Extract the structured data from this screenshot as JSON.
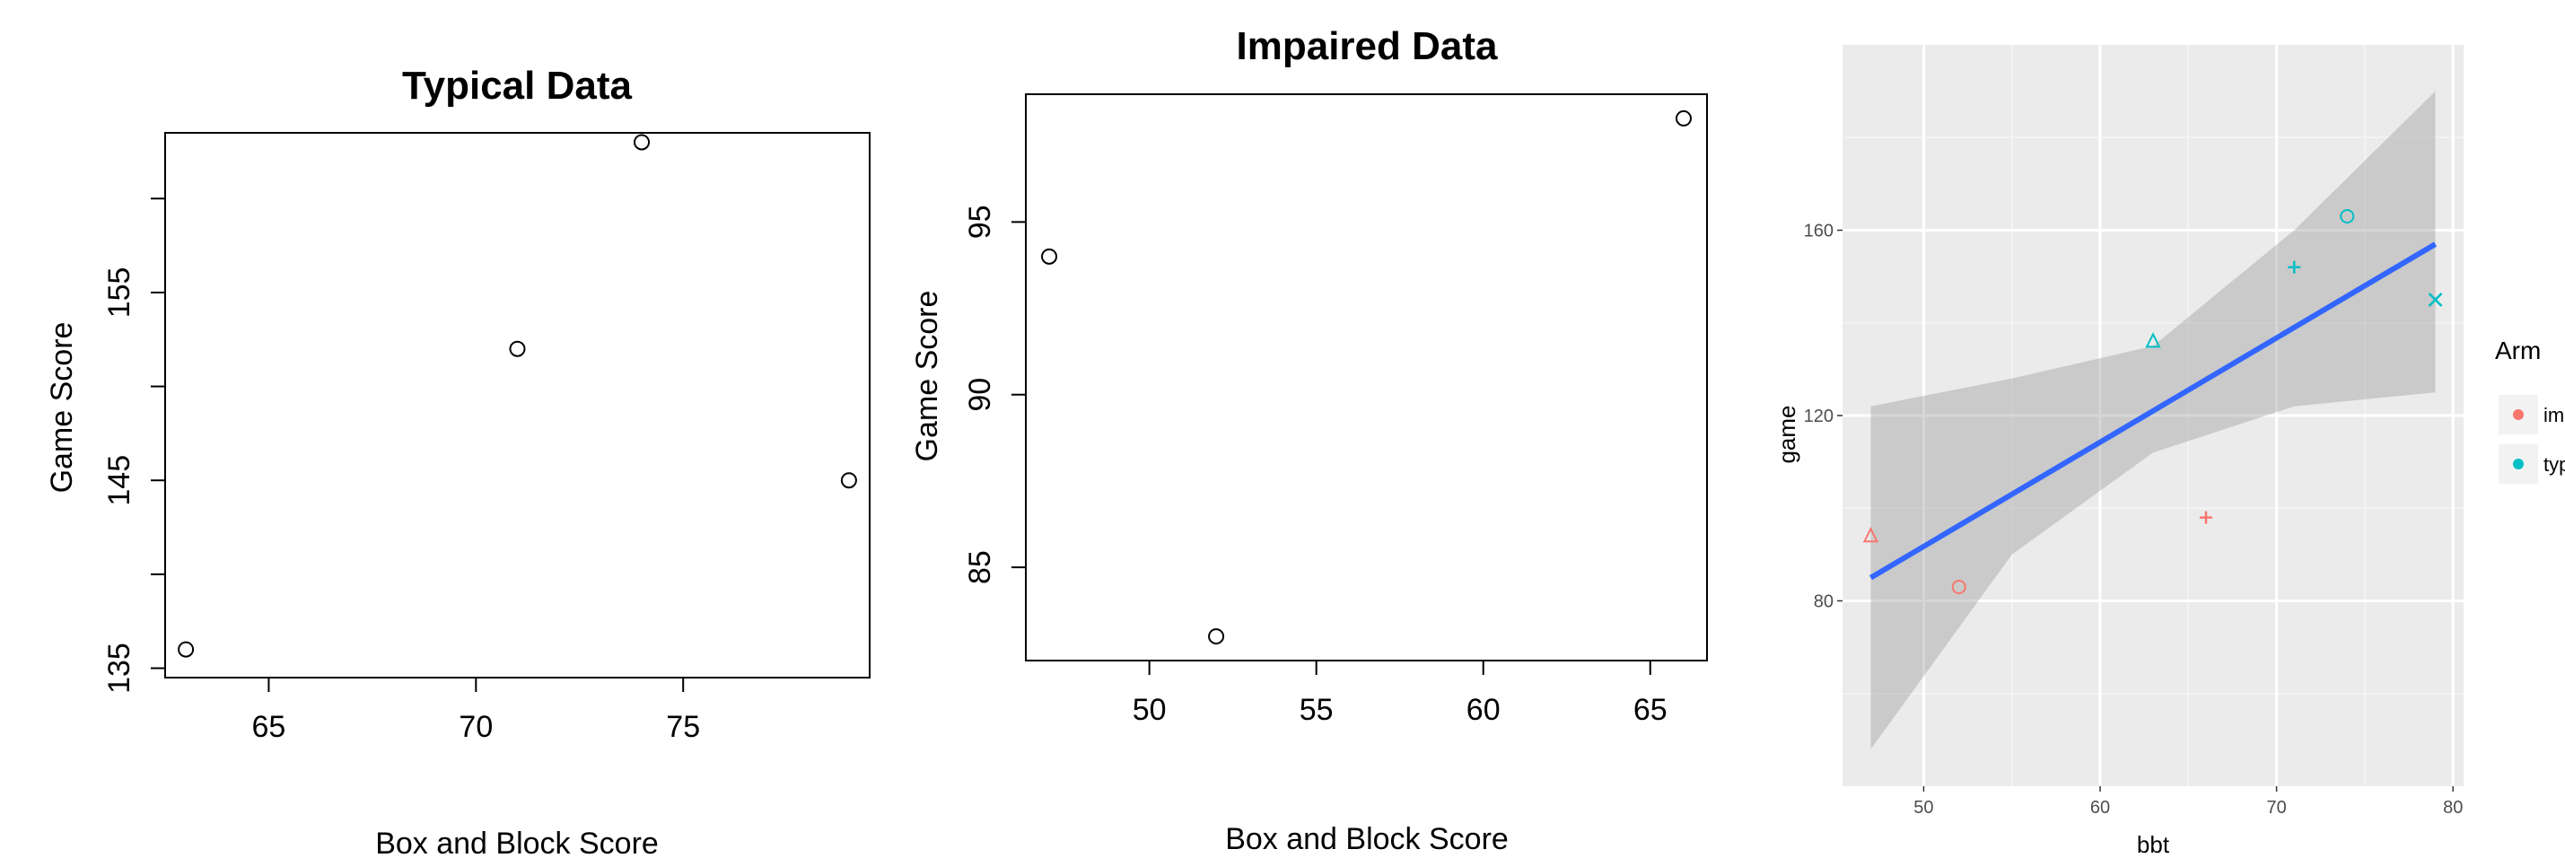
{
  "chart_data": [
    {
      "type": "scatter",
      "title": "Typical Data",
      "xlabel": "Box and Block Score",
      "ylabel": "Game Score",
      "xlim": [
        62.5,
        79.5
      ],
      "ylim": [
        134.5,
        163.5
      ],
      "xticks": [
        65,
        70,
        75
      ],
      "yticks": [
        135,
        140,
        145,
        150,
        155,
        160
      ],
      "ytick_labels": [
        "135",
        "",
        "145",
        "",
        "155",
        ""
      ],
      "points": [
        {
          "x": 63,
          "y": 136
        },
        {
          "x": 71,
          "y": 152
        },
        {
          "x": 74,
          "y": 163
        },
        {
          "x": 79,
          "y": 145
        }
      ]
    },
    {
      "type": "scatter",
      "title": "Impaired Data",
      "xlabel": "Box and Block Score",
      "ylabel": "Game Score",
      "xlim": [
        46.3,
        66.7
      ],
      "ylim": [
        82.3,
        98.7
      ],
      "xticks": [
        50,
        55,
        60,
        65
      ],
      "yticks": [
        85,
        90,
        95
      ],
      "ytick_labels": [
        "85",
        "90",
        "95"
      ],
      "points": [
        {
          "x": 47,
          "y": 94
        },
        {
          "x": 52,
          "y": 83
        },
        {
          "x": 66,
          "y": 98
        }
      ]
    },
    {
      "type": "scatter",
      "xlabel": "bbt",
      "ylabel": "game",
      "xlim": [
        45.4,
        80.6
      ],
      "ylim": [
        40,
        200
      ],
      "xticks": [
        50,
        60,
        70,
        80
      ],
      "yticks": [
        80,
        120,
        160
      ],
      "grid": true,
      "legend": {
        "title": "Arm",
        "position": "right",
        "labels": [
          "imp",
          "typ"
        ]
      },
      "colors": {
        "imp": "#f8766d",
        "typ": "#00bfc4",
        "fit": "#3366ff",
        "band": "#999999",
        "panel": "#ebebeb"
      },
      "fit": {
        "x": [
          47,
          79
        ],
        "y": [
          85,
          157
        ]
      },
      "confidence_band": {
        "x": [
          47,
          55,
          63,
          71,
          79
        ],
        "lower": [
          48,
          90,
          112,
          122,
          125
        ],
        "upper": [
          122,
          128,
          135,
          160,
          190
        ]
      },
      "series": [
        {
          "name": "imp",
          "points": [
            {
              "x": 47,
              "y": 94,
              "shape": "triangle"
            },
            {
              "x": 52,
              "y": 83,
              "shape": "circle"
            },
            {
              "x": 66,
              "y": 98,
              "shape": "plus"
            }
          ]
        },
        {
          "name": "typ",
          "points": [
            {
              "x": 63,
              "y": 136,
              "shape": "triangle"
            },
            {
              "x": 71,
              "y": 152,
              "shape": "plus"
            },
            {
              "x": 74,
              "y": 163,
              "shape": "circle"
            },
            {
              "x": 79,
              "y": 145,
              "shape": "cross"
            }
          ]
        }
      ]
    }
  ]
}
